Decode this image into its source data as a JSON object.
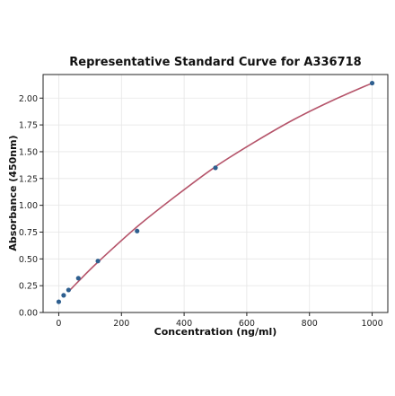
{
  "chart_data": {
    "type": "scatter",
    "title": "Representative Standard Curve for A336718",
    "xlabel": "Concentration (ng/ml)",
    "ylabel": "Absorbance (450nm)",
    "xlim": [
      -50,
      1050
    ],
    "ylim": [
      0,
      2.22
    ],
    "xticks": [
      0,
      200,
      400,
      600,
      800,
      1000
    ],
    "xtick_labels": [
      "0",
      "200",
      "400",
      "600",
      "800",
      "1000"
    ],
    "yticks": [
      0.0,
      0.25,
      0.5,
      0.75,
      1.0,
      1.25,
      1.5,
      1.75,
      2.0
    ],
    "ytick_labels": [
      "0.00",
      "0.25",
      "0.50",
      "0.75",
      "1.00",
      "1.25",
      "1.50",
      "1.75",
      "2.00"
    ],
    "grid": true,
    "series": [
      {
        "kind": "points",
        "color": "#2e5f8f",
        "x": [
          0,
          15.6,
          31.25,
          62.5,
          125,
          250,
          500,
          1000
        ],
        "y": [
          0.1,
          0.16,
          0.21,
          0.32,
          0.48,
          0.76,
          1.35,
          2.14
        ]
      },
      {
        "kind": "fit-curve",
        "color": "#b5546a",
        "x": [
          31.25,
          62.5,
          125,
          250,
          375,
          500,
          625,
          750,
          875,
          1000
        ],
        "y": [
          0.195,
          0.29,
          0.47,
          0.8,
          1.09,
          1.36,
          1.59,
          1.8,
          1.98,
          2.14
        ]
      }
    ]
  }
}
